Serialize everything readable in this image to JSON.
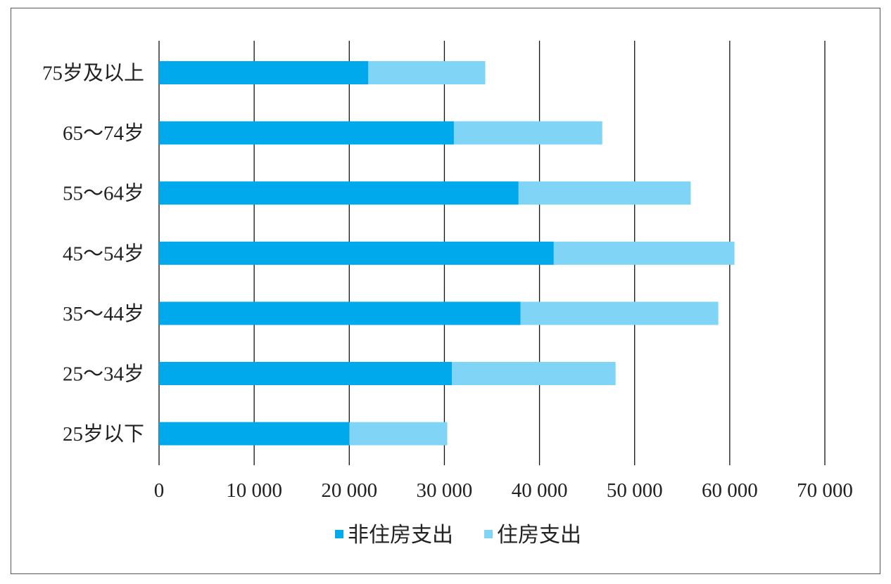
{
  "chart_data": {
    "type": "bar",
    "orientation": "horizontal",
    "stacked": true,
    "categories": [
      "75岁及以上",
      "65～74岁",
      "55～64岁",
      "45～54岁",
      "35～44岁",
      "25～34岁",
      "25岁以下"
    ],
    "series": [
      {
        "name": "非住房支出",
        "color": "#00A9EC",
        "values": [
          22000,
          31000,
          37800,
          41500,
          38000,
          30800,
          20000
        ]
      },
      {
        "name": "住房支出",
        "color": "#80D4F6",
        "values": [
          12300,
          15600,
          18100,
          19000,
          20800,
          17200,
          10300
        ]
      }
    ],
    "x_ticks": [
      "0",
      "10 000",
      "20 000",
      "30 000",
      "40 000",
      "50 000",
      "60 000",
      "70 000"
    ],
    "xlim": [
      0,
      70000
    ],
    "grid": true,
    "legend_position": "bottom"
  }
}
